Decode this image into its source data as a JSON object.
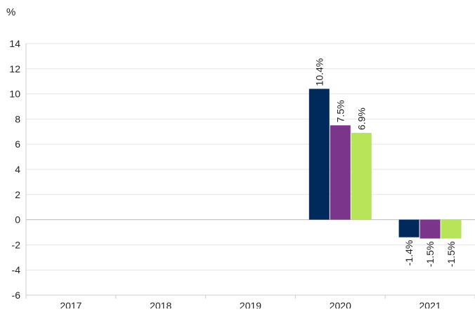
{
  "chart_data": {
    "type": "bar",
    "title": "",
    "xlabel": "",
    "ylabel": "%",
    "ylim": [
      -6,
      14
    ],
    "yticks": [
      14,
      12,
      10,
      8,
      6,
      4,
      2,
      0,
      -2,
      -4,
      -6
    ],
    "grid": true,
    "categories": [
      "2017",
      "2018",
      "2019",
      "2020",
      "2021"
    ],
    "series": [
      {
        "color": "#012a5c",
        "values": [
          null,
          null,
          null,
          10.4,
          -1.4
        ],
        "labels": [
          "",
          "",
          "",
          "10.4%",
          "-1.4%"
        ]
      },
      {
        "color": "#7b358a",
        "values": [
          null,
          null,
          null,
          7.5,
          -1.5
        ],
        "labels": [
          "",
          "",
          "",
          "7.5%",
          "-1.5%"
        ]
      },
      {
        "color": "#b8e45a",
        "values": [
          null,
          null,
          null,
          6.9,
          -1.5
        ],
        "labels": [
          "",
          "",
          "",
          "6.9%",
          "-1.5%"
        ]
      }
    ]
  }
}
